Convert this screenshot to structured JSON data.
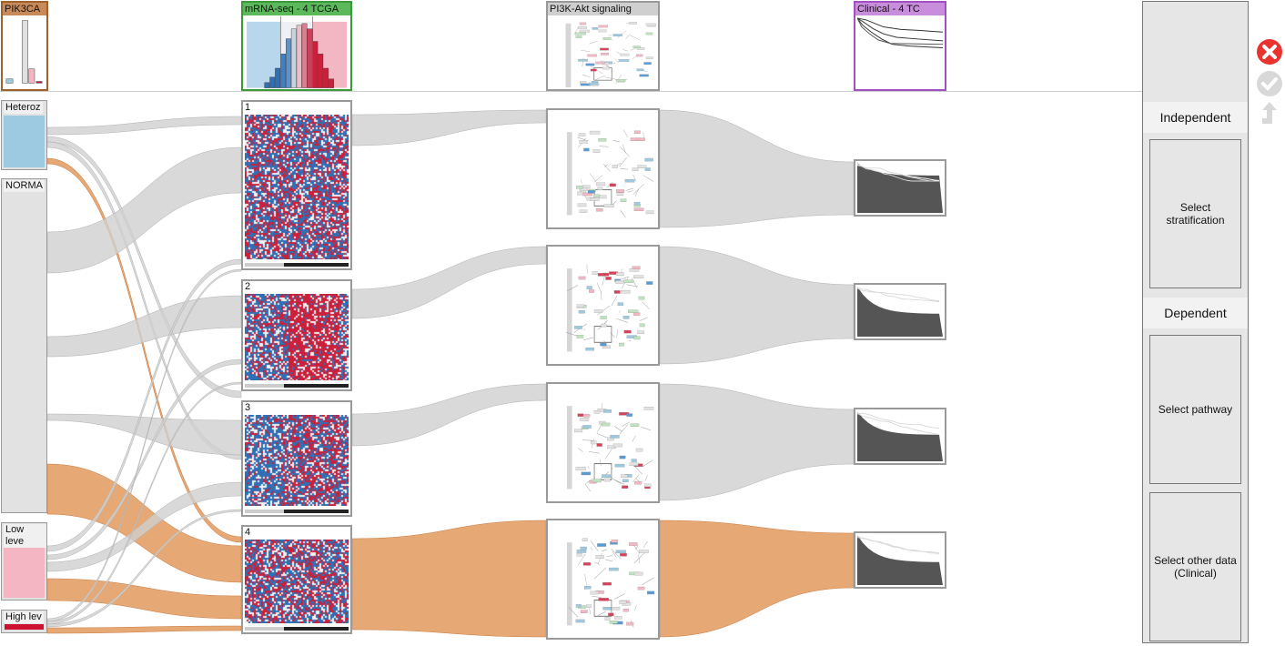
{
  "columns": {
    "pik3ca": {
      "label": "PIK3CA",
      "color": "#a0622d"
    },
    "mrna": {
      "label": "mRNA-seq - 4 TCGA",
      "color": "#3a9a3a"
    },
    "pathway": {
      "label": "PI3K-Akt signaling",
      "color": "#999999"
    },
    "clinical": {
      "label": "Clinical - 4 TC",
      "color": "#a050c0"
    }
  },
  "stratification_groups": [
    {
      "label": "Heteroz",
      "color": "#9ecae1"
    },
    {
      "label": "NORMA",
      "color": "#e2e2e2"
    },
    {
      "label": "Low leve",
      "color": "#f4b6c2"
    },
    {
      "label": "High lev",
      "color": "#cc1133"
    }
  ],
  "clusters": [
    {
      "label": "1"
    },
    {
      "label": "2"
    },
    {
      "label": "3"
    },
    {
      "label": "4"
    }
  ],
  "flow_colors": {
    "grey": "#cfcfcf",
    "orange": "#e29a5e"
  },
  "heatmap_colors": {
    "red": "#cc1f3a",
    "blue": "#2f6fb5",
    "white": "#f2f2f2"
  },
  "right_panel": {
    "independent_title": "Independent",
    "dependent_title": "Dependent",
    "select_stratification": "Select stratification",
    "select_pathway": "Select pathway",
    "select_other": "Select other data (Clinical)"
  },
  "actions": {
    "close": "close-icon",
    "confirm": "check-icon",
    "back": "back-arrow-icon"
  }
}
